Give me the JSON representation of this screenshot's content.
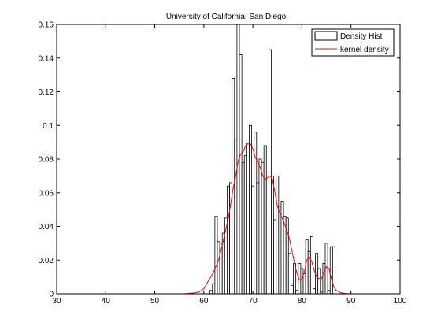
{
  "chart_data": {
    "type": "bar",
    "title": "University of California, San Diego",
    "xlabel": "",
    "ylabel": "",
    "xlim": [
      30,
      100
    ],
    "ylim": [
      0,
      0.16
    ],
    "xticks": [
      30,
      40,
      50,
      60,
      70,
      80,
      90,
      100
    ],
    "yticks": [
      0,
      0.02,
      0.04,
      0.06,
      0.08,
      0.1,
      0.12,
      0.14,
      0.16
    ],
    "ytick_labels": [
      "0",
      "0.02",
      "0.04",
      "0.06",
      "0.08",
      "0.1",
      "0.12",
      "0.14",
      "0.16"
    ],
    "bar_width": 0.5,
    "legend": {
      "position": "top-right",
      "entries": [
        {
          "label": "Density Hist",
          "style": "bar"
        },
        {
          "label": "kernel density",
          "style": "line",
          "color": "#ff0000"
        }
      ]
    },
    "series": [
      {
        "name": "Density Hist",
        "type": "bar",
        "color": "#000000",
        "x": [
          61.5,
          62.0,
          62.5,
          63.0,
          63.5,
          64.0,
          64.5,
          65.0,
          65.5,
          66.0,
          66.5,
          67.0,
          67.5,
          68.0,
          68.5,
          69.0,
          69.5,
          70.0,
          70.5,
          71.0,
          71.5,
          72.0,
          72.5,
          73.0,
          73.5,
          74.0,
          74.5,
          75.0,
          75.5,
          76.0,
          76.5,
          77.0,
          77.5,
          78.0,
          78.5,
          79.0,
          79.5,
          80.0,
          80.5,
          81.0,
          81.5,
          82.0,
          82.5,
          83.0,
          83.5,
          84.0,
          84.5,
          85.0,
          85.5,
          86.0,
          86.5
        ],
        "values": [
          0.002,
          0.006,
          0.046,
          0.031,
          0.03,
          0.036,
          0.045,
          0.064,
          0.066,
          0.128,
          0.092,
          0.16,
          0.142,
          0.078,
          0.082,
          0.089,
          0.1,
          0.064,
          0.096,
          0.066,
          0.08,
          0.078,
          0.088,
          0.07,
          0.145,
          0.07,
          0.044,
          0.07,
          0.052,
          0.055,
          0.046,
          0.045,
          0.024,
          0.005,
          0.018,
          0.002,
          0.018,
          0.015,
          0.012,
          0.032,
          0.025,
          0.034,
          0.003,
          0.024,
          0.015,
          0.001,
          0.018,
          0.03,
          0.002,
          0.028,
          0.028
        ]
      },
      {
        "name": "kernel density",
        "type": "line",
        "color": "#ff0000",
        "x": [
          38,
          50,
          56,
          58,
          59,
          60,
          61,
          62,
          63,
          64,
          65,
          66,
          66.5,
          67,
          67.5,
          68,
          68.5,
          69,
          69.5,
          70,
          70.5,
          71,
          71.5,
          72,
          72.5,
          73,
          73.5,
          74,
          74.5,
          75,
          75.5,
          76,
          76.5,
          77,
          77.5,
          78,
          78.5,
          79,
          79.5,
          80,
          80.5,
          81,
          81.5,
          82,
          82.5,
          83,
          83.5,
          84,
          84.5,
          85,
          85.5,
          86,
          86.5,
          87,
          88,
          89,
          90,
          96
        ],
        "values": [
          0.0,
          0.0,
          0.0,
          0.0005,
          0.001,
          0.003,
          0.008,
          0.013,
          0.02,
          0.032,
          0.045,
          0.063,
          0.07,
          0.079,
          0.083,
          0.084,
          0.088,
          0.089,
          0.089,
          0.086,
          0.081,
          0.078,
          0.075,
          0.07,
          0.068,
          0.069,
          0.07,
          0.068,
          0.06,
          0.052,
          0.048,
          0.045,
          0.041,
          0.037,
          0.032,
          0.025,
          0.018,
          0.012,
          0.008,
          0.009,
          0.013,
          0.02,
          0.022,
          0.019,
          0.014,
          0.01,
          0.009,
          0.009,
          0.013,
          0.016,
          0.015,
          0.009,
          0.004,
          0.002,
          0.0005,
          0.0002,
          0.0,
          0.0
        ]
      }
    ]
  }
}
